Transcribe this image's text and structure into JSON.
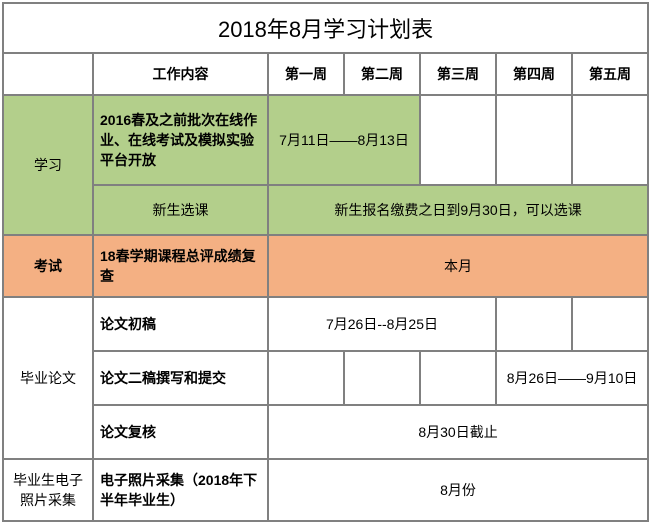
{
  "title": "2018年8月学习计划表",
  "headers": {
    "content": "工作内容",
    "w1": "第一周",
    "w2": "第二周",
    "w3": "第三周",
    "w4": "第四周",
    "w5": "第五周"
  },
  "categories": {
    "study": "学习",
    "exam": "考试",
    "thesis": "毕业论文",
    "photo": "毕业生电子照片采集"
  },
  "rows": {
    "study1": {
      "content": "2016春及之前批次在线作业、在线考试及模拟实验平台开放",
      "period": "7月11日——8月13日"
    },
    "study2": {
      "content": "新生选课",
      "period": "新生报名缴费之日到9月30日，可以选课"
    },
    "exam": {
      "content": "18春学期课程总评成绩复查",
      "period": "本月"
    },
    "thesis1": {
      "content": "论文初稿",
      "period": "7月26日--8月25日"
    },
    "thesis2": {
      "content": "论文二稿撰写和提交",
      "period": "8月26日——9月10日"
    },
    "thesis3": {
      "content": "论文复核",
      "period": "8月30日截止"
    },
    "photo": {
      "content": "电子照片采集（2018年下半年毕业生）",
      "period": "8月份"
    }
  },
  "colors": {
    "green": "#b3cf8b",
    "orange": "#f4b083",
    "border": "#808080"
  }
}
